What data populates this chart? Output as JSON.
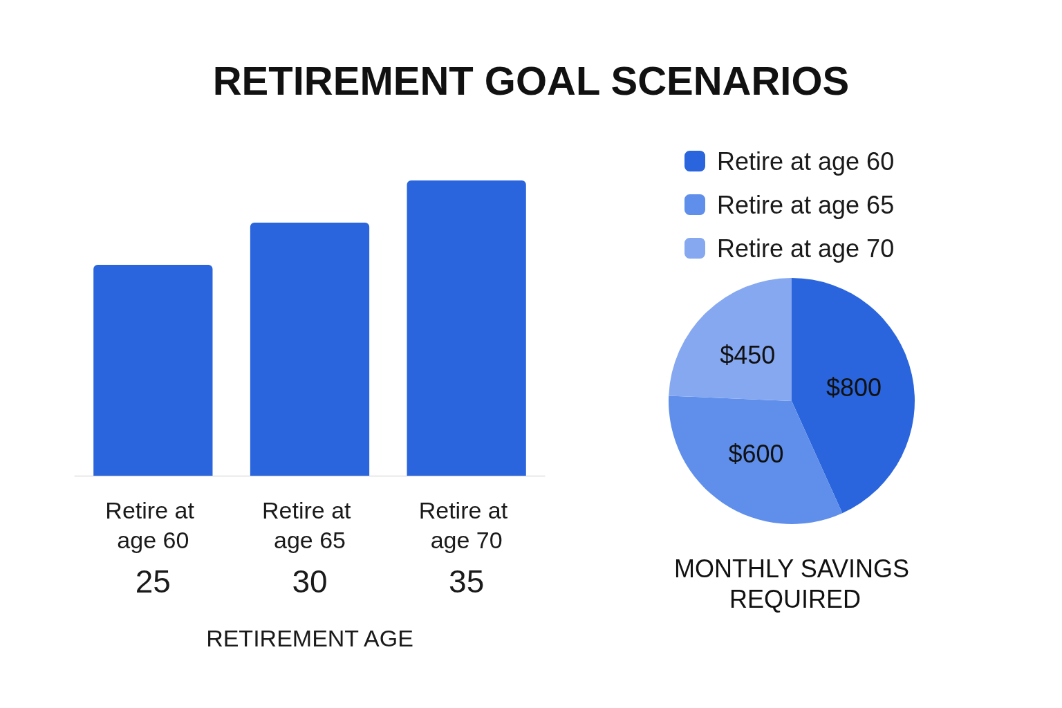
{
  "chart_data": [
    {
      "type": "bar",
      "title": "RETIREMENT GOAL SCENARIOS",
      "xlabel": "RETIREMENT AGE",
      "categories": [
        "Retire at age 60",
        "Retire at age 65",
        "Retire at age 70"
      ],
      "values": [
        25,
        30,
        35
      ],
      "color": "#2a65dd",
      "data_labels": true,
      "tick_labels": "x"
    },
    {
      "type": "pie",
      "title": "MONTHLY SAVINGS REQUIRED",
      "categories": [
        "Retire at age 60",
        "Retire at age 65",
        "Retire at age 70"
      ],
      "values": [
        800,
        600,
        450
      ],
      "colors": [
        "#2a65dd",
        "#5f8fea",
        "#86a8f0"
      ],
      "value_labels": [
        "$800",
        "$600",
        "$450"
      ],
      "legend": "top right"
    }
  ]
}
